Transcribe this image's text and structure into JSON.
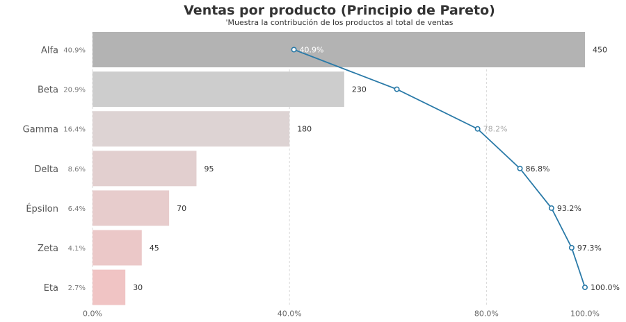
{
  "title": "Ventas por producto (Principio de Pareto)",
  "subtitle": "'Muestra la contribución de los productos al total de ventas",
  "colors": {
    "line": "#2a7aa8",
    "first_bar": "#b3b3b3",
    "second_bar": "#cdcdcd",
    "pink_bar": "#f0c4c4",
    "grid": "#d9d9d9"
  },
  "chart_data": {
    "type": "bar",
    "orientation": "horizontal",
    "categories": [
      "Alfa",
      "Beta",
      "Gamma",
      "Delta",
      "Épsilon",
      "Zeta",
      "Eta"
    ],
    "share_labels": [
      "40.9%",
      "20.9%",
      "16.4%",
      "8.6%",
      "6.4%",
      "4.1%",
      "2.7%"
    ],
    "values": [
      450,
      230,
      180,
      95,
      70,
      45,
      30
    ],
    "xlim": [
      0,
      450
    ],
    "cumulative_line": {
      "values": [
        40.9,
        61.8,
        78.2,
        86.8,
        93.2,
        97.3,
        100.0
      ],
      "labels": [
        "40.9%",
        "",
        "78.2%",
        "86.8%",
        "93.2%",
        "97.3%",
        "100.0%"
      ]
    },
    "x_ticks": [
      {
        "value": 0,
        "label": "0.0%"
      },
      {
        "value": 40,
        "label": "40.0%"
      },
      {
        "value": 80,
        "label": "80.0%"
      },
      {
        "value": 100,
        "label": "100.0%"
      }
    ],
    "grid": true
  }
}
